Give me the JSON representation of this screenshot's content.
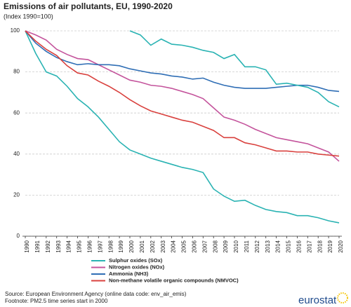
{
  "chart_data": {
    "type": "line",
    "title": "Emissions of air pollutants, EU, 1990-2020",
    "subtitle": "(Index 1990=100)",
    "categories": [
      "1990",
      "1991",
      "1992",
      "1993",
      "1994",
      "1995",
      "1996",
      "1997",
      "1998",
      "1999",
      "2000",
      "2001",
      "2002",
      "2003",
      "2004",
      "2005",
      "2006",
      "2007",
      "2008",
      "2009",
      "2010",
      "2011",
      "2012",
      "2013",
      "2014",
      "2015",
      "2016",
      "2017",
      "2018",
      "2019",
      "2020"
    ],
    "ylim": [
      0,
      100
    ],
    "yticks": [
      0,
      20,
      40,
      60,
      80,
      100
    ],
    "grid": true,
    "series": [
      {
        "name": "Sulphur oxides (SOx)",
        "color": "#2ab3b3",
        "values": [
          100,
          89,
          80,
          78,
          73,
          67,
          63,
          58,
          52,
          46,
          42,
          40,
          38,
          36.5,
          35,
          33.5,
          32.5,
          31,
          23,
          19.5,
          17,
          17.5,
          15,
          13,
          12,
          11.5,
          10,
          10,
          9,
          7.5,
          6.5
        ]
      },
      {
        "name": "Nitrogen oxides (NOx)",
        "color": "#c4549c",
        "values": [
          100,
          98,
          95.5,
          91,
          88.5,
          86.5,
          86,
          83.5,
          81,
          78.5,
          76,
          75,
          73.5,
          73,
          72,
          70.5,
          69,
          67,
          62.5,
          58,
          56.5,
          54.5,
          52,
          50,
          48,
          47,
          46,
          45,
          43,
          41,
          36.5
        ]
      },
      {
        "name": "Ammonia (NH3)",
        "color": "#2f6eb5",
        "values": [
          100,
          94,
          90,
          87,
          85,
          83.5,
          84,
          83.5,
          83.5,
          83,
          81.5,
          80.5,
          79.5,
          79,
          78,
          77.5,
          76.5,
          77,
          75,
          73.5,
          72.5,
          72,
          72,
          72,
          72.5,
          73,
          73.5,
          73.5,
          72.5,
          71,
          70.5
        ]
      },
      {
        "name": "Non-methane volatile organic compounds (NMVOC)",
        "color": "#d9413e",
        "values": [
          100,
          95,
          91,
          88,
          83,
          79.5,
          78.5,
          75.5,
          73,
          70,
          66.5,
          63.5,
          61,
          59.5,
          58,
          56.5,
          55.5,
          53.5,
          51.5,
          48,
          48,
          45.5,
          44.5,
          43,
          41.5,
          41.5,
          41,
          41,
          40,
          39.5,
          39
        ]
      },
      {
        "color": "#2ab3b3",
        "values": [
          null,
          null,
          null,
          null,
          null,
          null,
          null,
          null,
          null,
          null,
          100,
          98,
          93,
          96,
          93.5,
          93,
          92,
          90.5,
          89.5,
          86.5,
          88.5,
          82.5,
          82.5,
          81,
          74,
          74.5,
          73.5,
          72.5,
          70,
          65.5,
          63
        ]
      }
    ],
    "source": "Source: European Environment  Agency (online data code: env_air_emis)",
    "footnote": "Footnote: PM2.5 time series start in 2000",
    "logo": "eurostat"
  }
}
